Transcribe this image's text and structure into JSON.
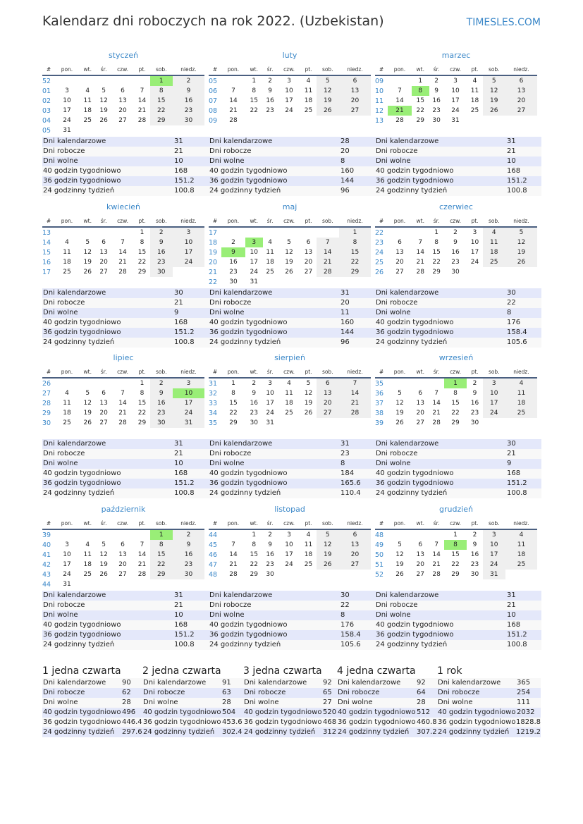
{
  "title": "Kalendarz dni roboczych na rok 2022. (Uzbekistan)",
  "brand": "TIMESLES.COM",
  "weekday_headers": [
    "#",
    "pon.",
    "wt.",
    "śr.",
    "czw.",
    "pt.",
    "sob.",
    "niedz."
  ],
  "stat_labels": [
    "Dni kalendarzowe",
    "Dni robocze",
    "Dni wolne",
    "40 godzin tygodniowo",
    "36 godzin tygodniowo",
    "24 godzinny tydzień"
  ],
  "colors": {
    "holiday": "#99ee77",
    "weekend": "#efefef",
    "accent": "#3a87c8"
  },
  "months": [
    {
      "name": "styczeń",
      "weeks": [
        [
          "52",
          [
            "",
            "",
            "",
            "",
            "",
            "1",
            "2"
          ]
        ],
        [
          "01",
          [
            "3",
            "4",
            "5",
            "6",
            "7",
            "8",
            "9"
          ]
        ],
        [
          "02",
          [
            "10",
            "11",
            "12",
            "13",
            "14",
            "15",
            "16"
          ]
        ],
        [
          "03",
          [
            "17",
            "18",
            "19",
            "20",
            "21",
            "22",
            "23"
          ]
        ],
        [
          "04",
          [
            "24",
            "25",
            "26",
            "27",
            "28",
            "29",
            "30"
          ]
        ],
        [
          "05",
          [
            "31",
            "",
            "",
            "",
            "",
            "",
            ""
          ]
        ]
      ],
      "holidays": [
        "1"
      ],
      "stats": [
        "31",
        "21",
        "10",
        "168",
        "151.2",
        "100.8"
      ]
    },
    {
      "name": "luty",
      "weeks": [
        [
          "05",
          [
            "",
            "1",
            "2",
            "3",
            "4",
            "5",
            "6"
          ]
        ],
        [
          "06",
          [
            "7",
            "8",
            "9",
            "10",
            "11",
            "12",
            "13"
          ]
        ],
        [
          "07",
          [
            "14",
            "15",
            "16",
            "17",
            "18",
            "19",
            "20"
          ]
        ],
        [
          "08",
          [
            "21",
            "22",
            "23",
            "24",
            "25",
            "26",
            "27"
          ]
        ],
        [
          "09",
          [
            "28",
            "",
            "",
            "",
            "",
            "",
            ""
          ]
        ]
      ],
      "holidays": [],
      "stats": [
        "28",
        "20",
        "8",
        "160",
        "144",
        "96"
      ]
    },
    {
      "name": "marzec",
      "weeks": [
        [
          "09",
          [
            "",
            "1",
            "2",
            "3",
            "4",
            "5",
            "6"
          ]
        ],
        [
          "10",
          [
            "7",
            "8",
            "9",
            "10",
            "11",
            "12",
            "13"
          ]
        ],
        [
          "11",
          [
            "14",
            "15",
            "16",
            "17",
            "18",
            "19",
            "20"
          ]
        ],
        [
          "12",
          [
            "21",
            "22",
            "23",
            "24",
            "25",
            "26",
            "27"
          ]
        ],
        [
          "13",
          [
            "28",
            "29",
            "30",
            "31",
            "",
            "",
            ""
          ]
        ]
      ],
      "holidays": [
        "8",
        "21"
      ],
      "stats": [
        "31",
        "21",
        "10",
        "168",
        "151.2",
        "100.8"
      ]
    },
    {
      "name": "kwiecień",
      "weeks": [
        [
          "13",
          [
            "",
            "",
            "",
            "",
            "1",
            "2",
            "3"
          ]
        ],
        [
          "14",
          [
            "4",
            "5",
            "6",
            "7",
            "8",
            "9",
            "10"
          ]
        ],
        [
          "15",
          [
            "11",
            "12",
            "13",
            "14",
            "15",
            "16",
            "17"
          ]
        ],
        [
          "16",
          [
            "18",
            "19",
            "20",
            "21",
            "22",
            "23",
            "24"
          ]
        ],
        [
          "17",
          [
            "25",
            "26",
            "27",
            "28",
            "29",
            "30",
            ""
          ]
        ]
      ],
      "holidays": [],
      "stats": [
        "30",
        "21",
        "9",
        "168",
        "151.2",
        "100.8"
      ]
    },
    {
      "name": "maj",
      "weeks": [
        [
          "17",
          [
            "",
            "",
            "",
            "",
            "",
            "",
            "1"
          ]
        ],
        [
          "18",
          [
            "2",
            "3",
            "4",
            "5",
            "6",
            "7",
            "8"
          ]
        ],
        [
          "19",
          [
            "9",
            "10",
            "11",
            "12",
            "13",
            "14",
            "15"
          ]
        ],
        [
          "20",
          [
            "16",
            "17",
            "18",
            "19",
            "20",
            "21",
            "22"
          ]
        ],
        [
          "21",
          [
            "23",
            "24",
            "25",
            "26",
            "27",
            "28",
            "29"
          ]
        ],
        [
          "22",
          [
            "30",
            "31",
            "",
            "",
            "",
            "",
            ""
          ]
        ]
      ],
      "holidays": [
        "3",
        "9"
      ],
      "stats": [
        "31",
        "20",
        "11",
        "160",
        "144",
        "96"
      ]
    },
    {
      "name": "czerwiec",
      "weeks": [
        [
          "22",
          [
            "",
            "",
            "1",
            "2",
            "3",
            "4",
            "5"
          ]
        ],
        [
          "23",
          [
            "6",
            "7",
            "8",
            "9",
            "10",
            "11",
            "12"
          ]
        ],
        [
          "24",
          [
            "13",
            "14",
            "15",
            "16",
            "17",
            "18",
            "19"
          ]
        ],
        [
          "25",
          [
            "20",
            "21",
            "22",
            "23",
            "24",
            "25",
            "26"
          ]
        ],
        [
          "26",
          [
            "27",
            "28",
            "29",
            "30",
            "",
            "",
            ""
          ]
        ]
      ],
      "holidays": [],
      "stats": [
        "30",
        "22",
        "8",
        "176",
        "158.4",
        "105.6"
      ]
    },
    {
      "name": "lipiec",
      "weeks": [
        [
          "26",
          [
            "",
            "",
            "",
            "",
            "1",
            "2",
            "3"
          ]
        ],
        [
          "27",
          [
            "4",
            "5",
            "6",
            "7",
            "8",
            "9",
            "10"
          ]
        ],
        [
          "28",
          [
            "11",
            "12",
            "13",
            "14",
            "15",
            "16",
            "17"
          ]
        ],
        [
          "29",
          [
            "18",
            "19",
            "20",
            "21",
            "22",
            "23",
            "24"
          ]
        ],
        [
          "30",
          [
            "25",
            "26",
            "27",
            "28",
            "29",
            "30",
            "31"
          ]
        ]
      ],
      "holidays": [
        "10"
      ],
      "stats": [
        "31",
        "21",
        "10",
        "168",
        "151.2",
        "100.8"
      ]
    },
    {
      "name": "sierpień",
      "weeks": [
        [
          "31",
          [
            "1",
            "2",
            "3",
            "4",
            "5",
            "6",
            "7"
          ]
        ],
        [
          "32",
          [
            "8",
            "9",
            "10",
            "11",
            "12",
            "13",
            "14"
          ]
        ],
        [
          "33",
          [
            "15",
            "16",
            "17",
            "18",
            "19",
            "20",
            "21"
          ]
        ],
        [
          "34",
          [
            "22",
            "23",
            "24",
            "25",
            "26",
            "27",
            "28"
          ]
        ],
        [
          "35",
          [
            "29",
            "30",
            "31",
            "",
            "",
            "",
            ""
          ]
        ]
      ],
      "holidays": [],
      "stats": [
        "31",
        "23",
        "8",
        "184",
        "165.6",
        "110.4"
      ]
    },
    {
      "name": "wrzesień",
      "weeks": [
        [
          "35",
          [
            "",
            "",
            "",
            "1",
            "2",
            "3",
            "4"
          ]
        ],
        [
          "36",
          [
            "5",
            "6",
            "7",
            "8",
            "9",
            "10",
            "11"
          ]
        ],
        [
          "37",
          [
            "12",
            "13",
            "14",
            "15",
            "16",
            "17",
            "18"
          ]
        ],
        [
          "38",
          [
            "19",
            "20",
            "21",
            "22",
            "23",
            "24",
            "25"
          ]
        ],
        [
          "39",
          [
            "26",
            "27",
            "28",
            "29",
            "30",
            "",
            ""
          ]
        ]
      ],
      "holidays": [
        "1"
      ],
      "stats": [
        "30",
        "21",
        "9",
        "168",
        "151.2",
        "100.8"
      ]
    },
    {
      "name": "październik",
      "weeks": [
        [
          "39",
          [
            "",
            "",
            "",
            "",
            "",
            "1",
            "2"
          ]
        ],
        [
          "40",
          [
            "3",
            "4",
            "5",
            "6",
            "7",
            "8",
            "9"
          ]
        ],
        [
          "41",
          [
            "10",
            "11",
            "12",
            "13",
            "14",
            "15",
            "16"
          ]
        ],
        [
          "42",
          [
            "17",
            "18",
            "19",
            "20",
            "21",
            "22",
            "23"
          ]
        ],
        [
          "43",
          [
            "24",
            "25",
            "26",
            "27",
            "28",
            "29",
            "30"
          ]
        ],
        [
          "44",
          [
            "31",
            "",
            "",
            "",
            "",
            "",
            ""
          ]
        ]
      ],
      "holidays": [
        "1"
      ],
      "stats": [
        "31",
        "21",
        "10",
        "168",
        "151.2",
        "100.8"
      ]
    },
    {
      "name": "listopad",
      "weeks": [
        [
          "44",
          [
            "",
            "1",
            "2",
            "3",
            "4",
            "5",
            "6"
          ]
        ],
        [
          "45",
          [
            "7",
            "8",
            "9",
            "10",
            "11",
            "12",
            "13"
          ]
        ],
        [
          "46",
          [
            "14",
            "15",
            "16",
            "17",
            "18",
            "19",
            "20"
          ]
        ],
        [
          "47",
          [
            "21",
            "22",
            "23",
            "24",
            "25",
            "26",
            "27"
          ]
        ],
        [
          "48",
          [
            "28",
            "29",
            "30",
            "",
            "",
            "",
            ""
          ]
        ]
      ],
      "holidays": [],
      "stats": [
        "30",
        "22",
        "8",
        "176",
        "158.4",
        "105.6"
      ]
    },
    {
      "name": "grudzień",
      "weeks": [
        [
          "48",
          [
            "",
            "",
            "",
            "1",
            "2",
            "3",
            "4"
          ]
        ],
        [
          "49",
          [
            "5",
            "6",
            "7",
            "8",
            "9",
            "10",
            "11"
          ]
        ],
        [
          "50",
          [
            "12",
            "13",
            "14",
            "15",
            "16",
            "17",
            "18"
          ]
        ],
        [
          "51",
          [
            "19",
            "20",
            "21",
            "22",
            "23",
            "24",
            "25"
          ]
        ],
        [
          "52",
          [
            "26",
            "27",
            "28",
            "29",
            "30",
            "31",
            ""
          ]
        ]
      ],
      "holidays": [
        "8"
      ],
      "stats": [
        "31",
        "21",
        "10",
        "168",
        "151.2",
        "100.8"
      ]
    }
  ],
  "quarters": [
    {
      "title": "1 jedna czwarta",
      "stats": [
        "90",
        "62",
        "28",
        "496",
        "446.4",
        "297.6"
      ]
    },
    {
      "title": "2 jedna czwarta",
      "stats": [
        "91",
        "63",
        "28",
        "504",
        "453.6",
        "302.4"
      ]
    },
    {
      "title": "3 jedna czwarta",
      "stats": [
        "92",
        "65",
        "27",
        "520",
        "468",
        "312"
      ]
    },
    {
      "title": "4 jedna czwarta",
      "stats": [
        "92",
        "64",
        "28",
        "512",
        "460.8",
        "307.2"
      ]
    },
    {
      "title": "1 rok",
      "stats": [
        "365",
        "254",
        "111",
        "2032",
        "1828.8",
        "1219.2"
      ]
    }
  ]
}
